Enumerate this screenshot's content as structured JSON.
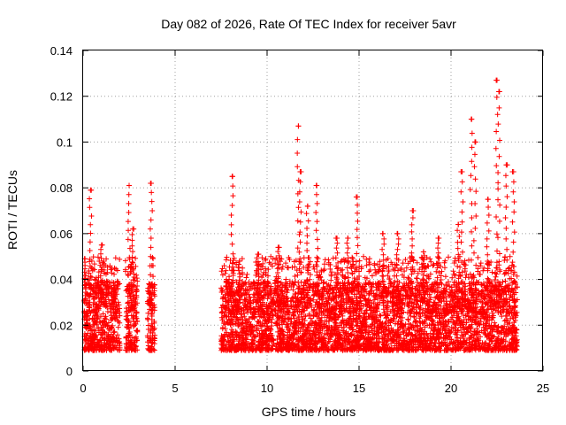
{
  "chart_data": {
    "type": "scatter",
    "title": "Day 082 of 2026, Rate Of TEC Index for receiver 5avr",
    "xlabel": "GPS time / hours",
    "ylabel": "ROTI / TECUs",
    "xlim": [
      0,
      25
    ],
    "ylim": [
      0,
      0.14
    ],
    "xticks": [
      0,
      5,
      10,
      15,
      20,
      25
    ],
    "yticks": [
      0,
      0.02,
      0.04,
      0.06,
      0.08,
      0.1,
      0.12,
      0.14
    ],
    "xtick_labels": [
      "0",
      "5",
      "10",
      "15",
      "20",
      "25"
    ],
    "ytick_labels": [
      "0",
      "0.02",
      "0.04",
      "0.06",
      "0.08",
      "0.1",
      "0.12",
      "0.14"
    ],
    "grid": true,
    "marker": "plus",
    "series_color": "#ff0000",
    "coverage_hours": [
      [
        0.05,
        2.0
      ],
      [
        2.3,
        2.95
      ],
      [
        3.5,
        3.9
      ],
      [
        7.5,
        23.6
      ]
    ],
    "peaks": [
      {
        "x": 0.1,
        "y": 0.049
      },
      {
        "x": 0.4,
        "y": 0.079
      },
      {
        "x": 1.0,
        "y": 0.055
      },
      {
        "x": 1.7,
        "y": 0.036
      },
      {
        "x": 2.5,
        "y": 0.081
      },
      {
        "x": 2.7,
        "y": 0.062
      },
      {
        "x": 3.7,
        "y": 0.082
      },
      {
        "x": 8.1,
        "y": 0.085
      },
      {
        "x": 8.5,
        "y": 0.048
      },
      {
        "x": 9.5,
        "y": 0.051
      },
      {
        "x": 10.6,
        "y": 0.054
      },
      {
        "x": 11.7,
        "y": 0.107
      },
      {
        "x": 11.8,
        "y": 0.087
      },
      {
        "x": 12.2,
        "y": 0.072
      },
      {
        "x": 12.7,
        "y": 0.081
      },
      {
        "x": 13.8,
        "y": 0.058
      },
      {
        "x": 14.4,
        "y": 0.058
      },
      {
        "x": 14.9,
        "y": 0.076
      },
      {
        "x": 16.3,
        "y": 0.06
      },
      {
        "x": 17.1,
        "y": 0.06
      },
      {
        "x": 17.9,
        "y": 0.07
      },
      {
        "x": 18.5,
        "y": 0.052
      },
      {
        "x": 19.3,
        "y": 0.058
      },
      {
        "x": 20.4,
        "y": 0.064
      },
      {
        "x": 20.6,
        "y": 0.087
      },
      {
        "x": 21.1,
        "y": 0.11
      },
      {
        "x": 21.3,
        "y": 0.1
      },
      {
        "x": 22.0,
        "y": 0.075
      },
      {
        "x": 22.5,
        "y": 0.127
      },
      {
        "x": 22.6,
        "y": 0.122
      },
      {
        "x": 23.0,
        "y": 0.09
      },
      {
        "x": 23.4,
        "y": 0.087
      }
    ],
    "baseline_range": [
      0.005,
      0.035
    ]
  }
}
